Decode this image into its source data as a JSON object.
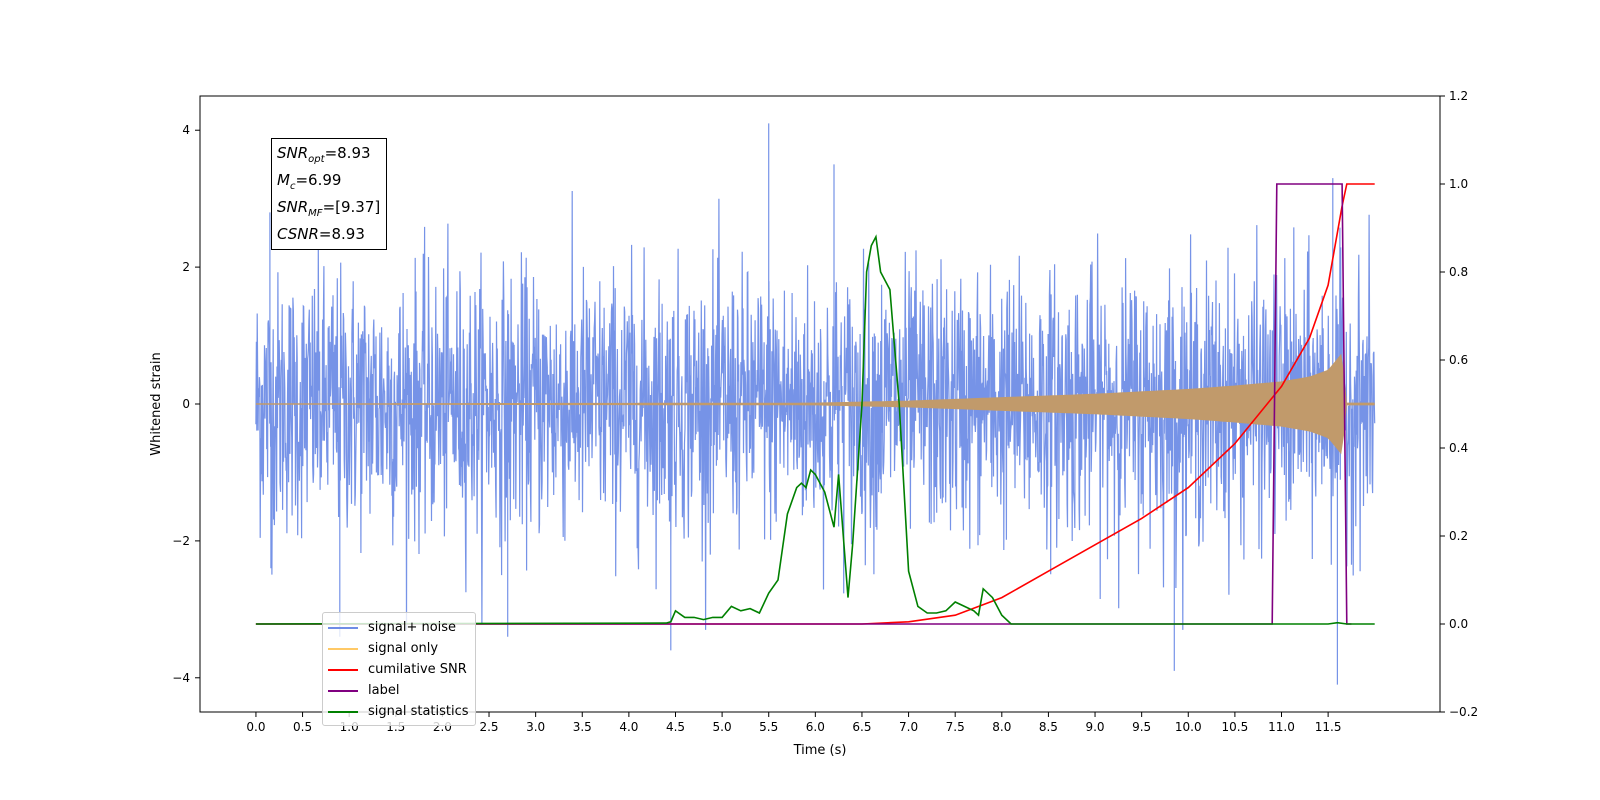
{
  "chart_data": {
    "type": "line",
    "xlabel": "Time (s)",
    "ylabel": "Whitened strain",
    "xlim": [
      -0.6,
      12.7
    ],
    "ylim": [
      -4.5,
      4.5
    ],
    "y2lim": [
      -0.2,
      1.2
    ],
    "x_ticks": [
      "0.0",
      "0.5",
      "1.0",
      "1.5",
      "2.0",
      "2.5",
      "3.0",
      "3.5",
      "4.0",
      "4.5",
      "5.0",
      "5.5",
      "6.0",
      "6.5",
      "7.0",
      "7.5",
      "8.0",
      "8.5",
      "9.0",
      "9.5",
      "10.0",
      "10.5",
      "11.0",
      "11.5"
    ],
    "y_ticks": [
      "4",
      "2",
      "0",
      "−2",
      "−4"
    ],
    "y_tick_values": [
      4,
      2,
      0,
      -2,
      -4
    ],
    "y2_ticks": [
      "1.2",
      "1.0",
      "0.8",
      "0.6",
      "0.4",
      "0.2",
      "0.0",
      "−0.2"
    ],
    "y2_tick_values": [
      1.2,
      1.0,
      0.8,
      0.6,
      0.4,
      0.2,
      0.0,
      -0.2
    ],
    "annotation": {
      "snr_opt": "8.93",
      "mc": "6.99",
      "snr_mf": "[9.37]",
      "csnr": "8.93"
    },
    "series": [
      {
        "name": "signal+ noise",
        "color": "#6f8de6",
        "axis": "left",
        "noise_range": [
          0,
          12
        ],
        "typical_amplitude": 2.0,
        "notable_spikes": [
          [
            0.15,
            2.8
          ],
          [
            0.16,
            -2.4
          ],
          [
            0.9,
            -3.4
          ],
          [
            2.7,
            -3.4
          ],
          [
            4.45,
            -3.6
          ],
          [
            5.5,
            4.1
          ],
          [
            6.2,
            3.5
          ],
          [
            9.85,
            -3.9
          ],
          [
            11.55,
            3.3
          ],
          [
            11.6,
            -4.1
          ]
        ]
      },
      {
        "name": "signal only",
        "color": "#d8a86a",
        "axis": "left",
        "envelope": {
          "x": [
            0,
            6.0,
            7.0,
            8.0,
            9.0,
            10.0,
            10.5,
            11.0,
            11.3,
            11.5,
            11.65,
            11.7,
            12.0
          ],
          "y": [
            0.01,
            0.02,
            0.05,
            0.1,
            0.15,
            0.22,
            0.27,
            0.33,
            0.4,
            0.5,
            0.75,
            0.02,
            0.02
          ]
        }
      },
      {
        "name": "cumilative SNR",
        "color": "#ff0000",
        "axis": "right",
        "x": [
          0,
          6.5,
          7.0,
          7.5,
          8.0,
          8.5,
          9.0,
          9.5,
          10.0,
          10.5,
          11.0,
          11.3,
          11.5,
          11.65,
          11.7,
          12.0
        ],
        "y": [
          0.0,
          0.0,
          0.005,
          0.02,
          0.06,
          0.12,
          0.18,
          0.24,
          0.31,
          0.41,
          0.54,
          0.65,
          0.77,
          0.95,
          1.0,
          1.0
        ]
      },
      {
        "name": "label",
        "color": "#800080",
        "axis": "right",
        "x": [
          0,
          10.9,
          10.95,
          11.65,
          11.7,
          11.75
        ],
        "y": [
          0.0,
          0.0,
          1.0,
          1.0,
          0.0,
          0.0
        ]
      },
      {
        "name": "signal statistics",
        "color": "#008000",
        "axis": "right",
        "x": [
          0,
          4.4,
          4.45,
          4.5,
          4.6,
          4.7,
          4.8,
          4.9,
          5.0,
          5.1,
          5.2,
          5.3,
          5.4,
          5.5,
          5.6,
          5.7,
          5.8,
          5.85,
          5.9,
          5.95,
          6.0,
          6.1,
          6.2,
          6.25,
          6.3,
          6.35,
          6.4,
          6.5,
          6.55,
          6.6,
          6.65,
          6.7,
          6.8,
          6.9,
          7.0,
          7.1,
          7.2,
          7.3,
          7.4,
          7.5,
          7.6,
          7.7,
          7.75,
          7.8,
          7.9,
          8.0,
          8.1,
          8.5,
          11.5,
          11.6,
          11.7,
          12.0
        ],
        "y": [
          0.0,
          0.002,
          0.005,
          0.03,
          0.015,
          0.015,
          0.01,
          0.015,
          0.015,
          0.04,
          0.03,
          0.035,
          0.025,
          0.07,
          0.1,
          0.25,
          0.31,
          0.32,
          0.31,
          0.35,
          0.34,
          0.3,
          0.22,
          0.34,
          0.2,
          0.06,
          0.18,
          0.5,
          0.8,
          0.86,
          0.88,
          0.8,
          0.76,
          0.5,
          0.12,
          0.04,
          0.025,
          0.025,
          0.03,
          0.05,
          0.04,
          0.03,
          0.02,
          0.08,
          0.06,
          0.02,
          0.0,
          0.0,
          0.0,
          0.003,
          0.0,
          0.0
        ]
      }
    ]
  }
}
